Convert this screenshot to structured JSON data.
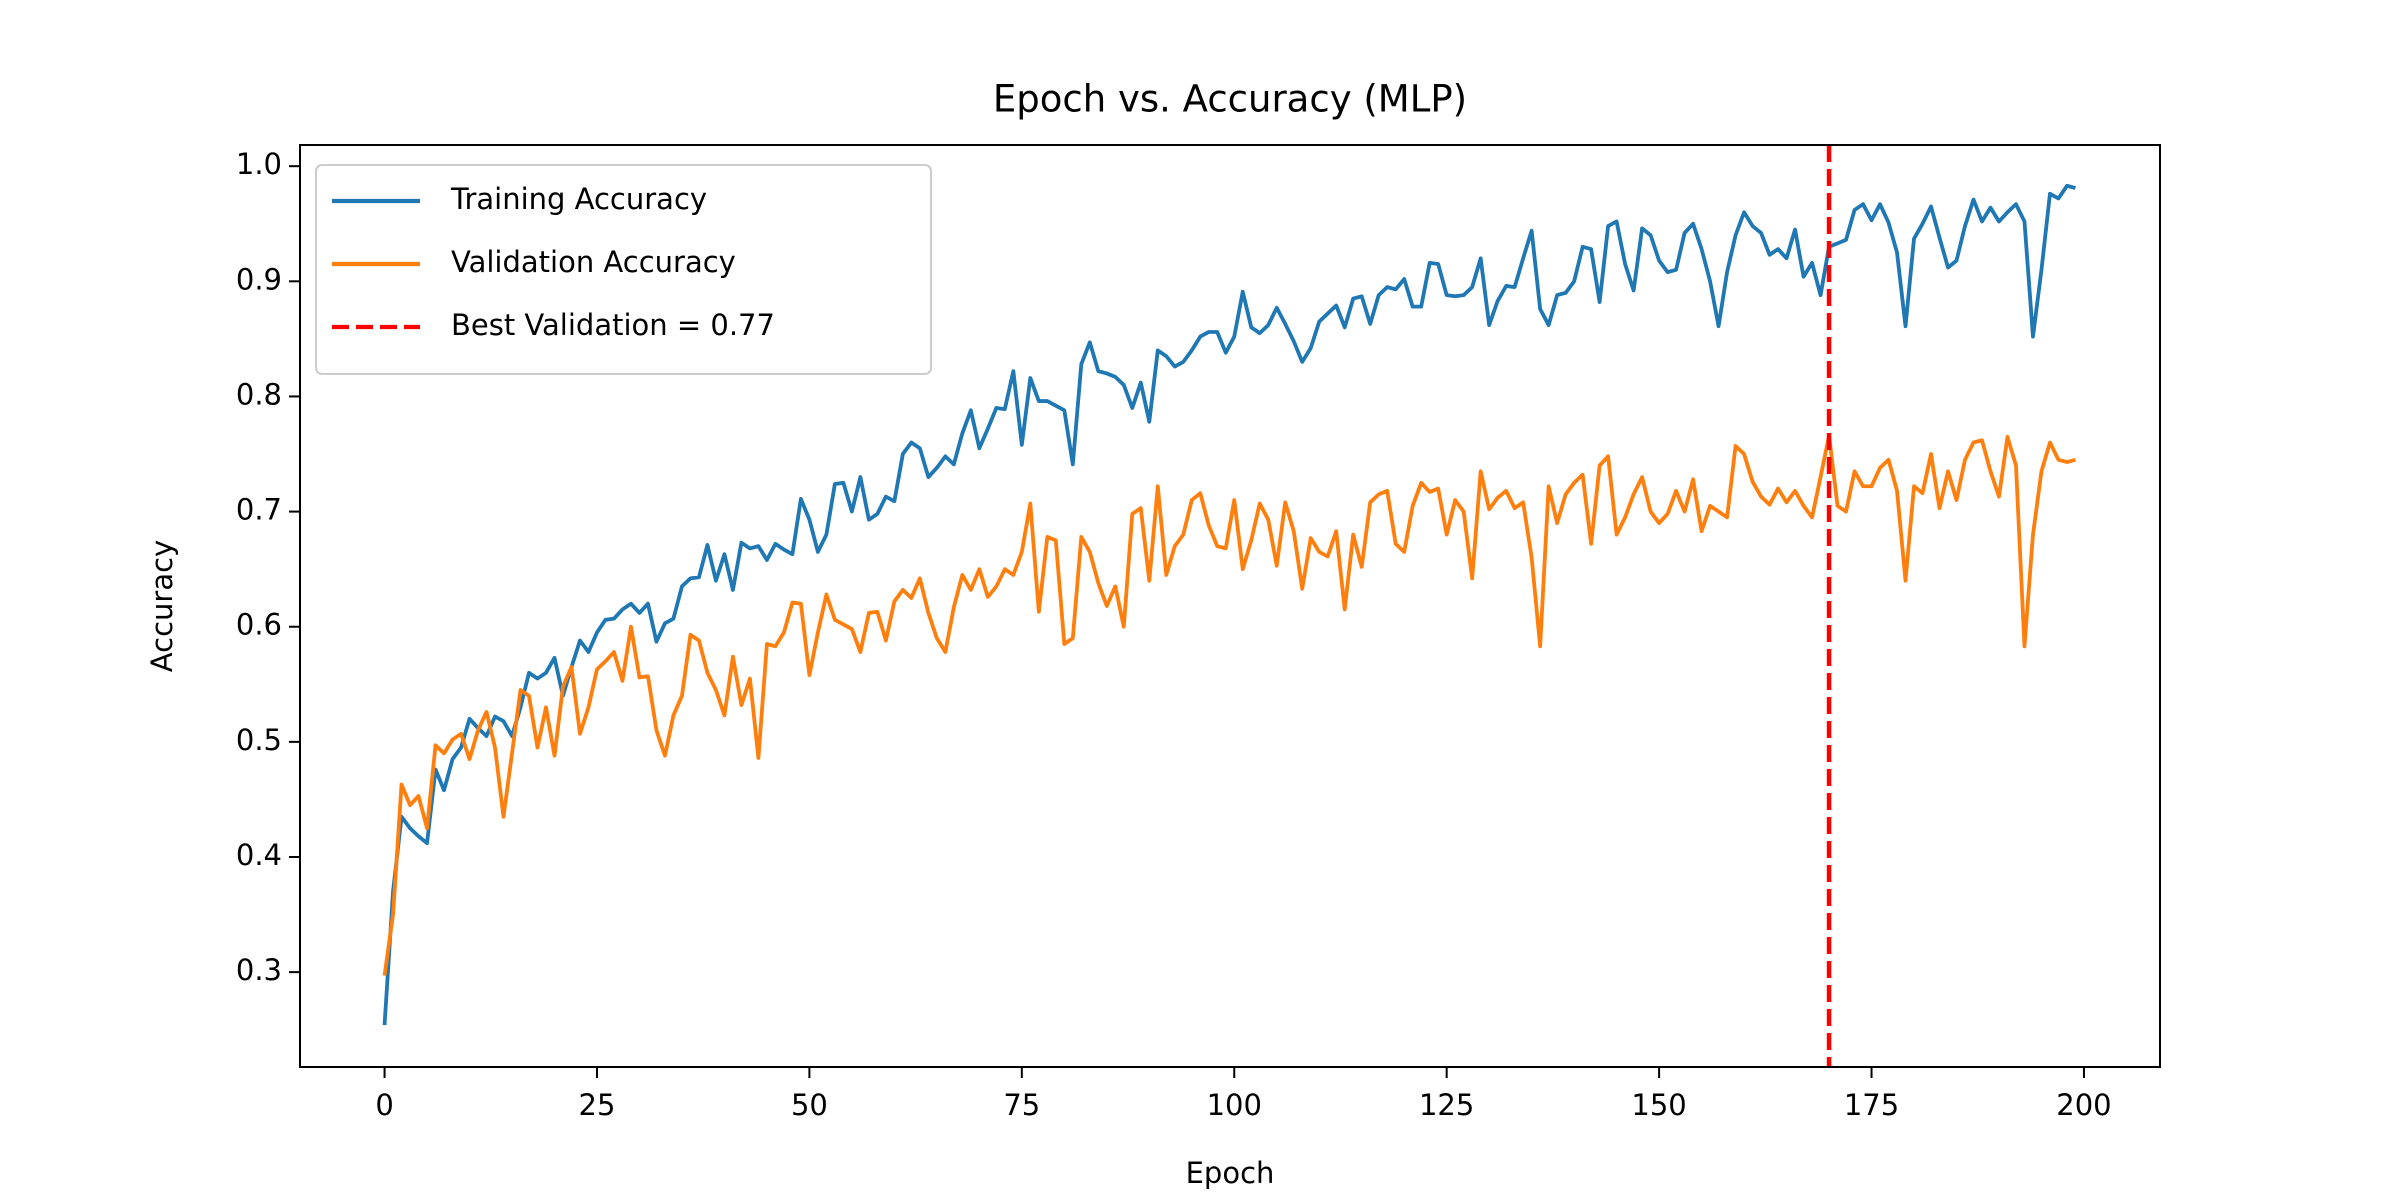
{
  "chart_data": {
    "type": "line",
    "title": "Epoch vs. Accuracy (MLP)",
    "x_label": "Epoch",
    "y_label": "Accuracy",
    "xlim": [
      -9.95,
      208.95
    ],
    "ylim": [
      0.2176,
      1.0184
    ],
    "xticks": [
      0,
      25,
      50,
      75,
      100,
      125,
      150,
      175,
      200
    ],
    "yticks": [
      0.3,
      0.4,
      0.5,
      0.6,
      0.7,
      0.8,
      0.9,
      {
        "value": 1,
        "label": "1.0"
      }
    ],
    "grid": false,
    "legend": "upper left",
    "x": [
      0,
      1,
      2,
      3,
      4,
      5,
      6,
      7,
      8,
      9,
      10,
      11,
      12,
      13,
      14,
      15,
      16,
      17,
      18,
      19,
      20,
      21,
      22,
      23,
      24,
      25,
      26,
      27,
      28,
      29,
      30,
      31,
      32,
      33,
      34,
      35,
      36,
      37,
      38,
      39,
      40,
      41,
      42,
      43,
      44,
      45,
      46,
      47,
      48,
      49,
      50,
      51,
      52,
      53,
      54,
      55,
      56,
      57,
      58,
      59,
      60,
      61,
      62,
      63,
      64,
      65,
      66,
      67,
      68,
      69,
      70,
      71,
      72,
      73,
      74,
      75,
      76,
      77,
      78,
      79,
      80,
      81,
      82,
      83,
      84,
      85,
      86,
      87,
      88,
      89,
      90,
      91,
      92,
      93,
      94,
      95,
      96,
      97,
      98,
      99,
      100,
      101,
      102,
      103,
      104,
      105,
      106,
      107,
      108,
      109,
      110,
      111,
      112,
      113,
      114,
      115,
      116,
      117,
      118,
      119,
      120,
      121,
      122,
      123,
      124,
      125,
      126,
      127,
      128,
      129,
      130,
      131,
      132,
      133,
      134,
      135,
      136,
      137,
      138,
      139,
      140,
      141,
      142,
      143,
      144,
      145,
      146,
      147,
      148,
      149,
      150,
      151,
      152,
      153,
      154,
      155,
      156,
      157,
      158,
      159,
      160,
      161,
      162,
      163,
      164,
      165,
      166,
      167,
      168,
      169,
      170,
      171,
      172,
      173,
      174,
      175,
      176,
      177,
      178,
      179,
      180,
      181,
      182,
      183,
      184,
      185,
      186,
      187,
      188,
      189,
      190,
      191,
      192,
      193,
      194,
      195,
      196,
      197,
      198,
      199
    ],
    "series": [
      {
        "name": "Training Accuracy",
        "color": "#1f77b4",
        "values": [
          0.254,
          0.37,
          0.435,
          0.425,
          0.418,
          0.412,
          0.476,
          0.458,
          0.485,
          0.495,
          0.52,
          0.512,
          0.505,
          0.522,
          0.518,
          0.505,
          0.53,
          0.56,
          0.555,
          0.56,
          0.573,
          0.54,
          0.565,
          0.588,
          0.578,
          0.595,
          0.606,
          0.607,
          0.615,
          0.62,
          0.612,
          0.62,
          0.587,
          0.603,
          0.607,
          0.635,
          0.642,
          0.643,
          0.671,
          0.64,
          0.663,
          0.632,
          0.673,
          0.668,
          0.67,
          0.658,
          0.672,
          0.667,
          0.663,
          0.711,
          0.693,
          0.665,
          0.68,
          0.724,
          0.725,
          0.7,
          0.73,
          0.693,
          0.698,
          0.713,
          0.709,
          0.75,
          0.76,
          0.755,
          0.73,
          0.738,
          0.748,
          0.741,
          0.768,
          0.788,
          0.755,
          0.772,
          0.79,
          0.789,
          0.822,
          0.758,
          0.816,
          0.796,
          0.796,
          0.792,
          0.788,
          0.741,
          0.828,
          0.847,
          0.822,
          0.82,
          0.817,
          0.81,
          0.79,
          0.812,
          0.778,
          0.84,
          0.835,
          0.826,
          0.83,
          0.84,
          0.852,
          0.856,
          0.856,
          0.838,
          0.852,
          0.891,
          0.86,
          0.855,
          0.862,
          0.877,
          0.863,
          0.848,
          0.83,
          0.842,
          0.865,
          0.872,
          0.879,
          0.86,
          0.885,
          0.887,
          0.863,
          0.888,
          0.895,
          0.893,
          0.902,
          0.878,
          0.878,
          0.916,
          0.915,
          0.888,
          0.887,
          0.888,
          0.895,
          0.92,
          0.862,
          0.883,
          0.896,
          0.895,
          0.92,
          0.944,
          0.876,
          0.862,
          0.888,
          0.89,
          0.9,
          0.93,
          0.928,
          0.882,
          0.948,
          0.952,
          0.915,
          0.892,
          0.946,
          0.94,
          0.918,
          0.908,
          0.91,
          0.942,
          0.95,
          0.928,
          0.9,
          0.861,
          0.908,
          0.94,
          0.96,
          0.948,
          0.942,
          0.923,
          0.928,
          0.92,
          0.945,
          0.904,
          0.916,
          0.888,
          0.93,
          0.933,
          0.936,
          0.962,
          0.967,
          0.953,
          0.967,
          0.951,
          0.925,
          0.861,
          0.937,
          0.95,
          0.965,
          0.938,
          0.912,
          0.918,
          0.948,
          0.971,
          0.952,
          0.964,
          0.952,
          0.96,
          0.967,
          0.952,
          0.852,
          0.91,
          0.976,
          0.972,
          0.983,
          0.981
        ]
      },
      {
        "name": "Validation Accuracy",
        "color": "#ff7f0e",
        "values": [
          0.297,
          0.35,
          0.463,
          0.445,
          0.453,
          0.425,
          0.497,
          0.49,
          0.502,
          0.507,
          0.485,
          0.51,
          0.526,
          0.495,
          0.435,
          0.49,
          0.545,
          0.54,
          0.495,
          0.53,
          0.488,
          0.548,
          0.565,
          0.507,
          0.53,
          0.563,
          0.57,
          0.578,
          0.553,
          0.6,
          0.556,
          0.557,
          0.51,
          0.488,
          0.523,
          0.54,
          0.593,
          0.588,
          0.56,
          0.545,
          0.523,
          0.574,
          0.532,
          0.555,
          0.486,
          0.585,
          0.583,
          0.595,
          0.621,
          0.62,
          0.558,
          0.595,
          0.628,
          0.606,
          0.602,
          0.598,
          0.578,
          0.612,
          0.613,
          0.588,
          0.622,
          0.632,
          0.625,
          0.642,
          0.612,
          0.59,
          0.578,
          0.617,
          0.645,
          0.632,
          0.65,
          0.626,
          0.635,
          0.65,
          0.645,
          0.665,
          0.707,
          0.613,
          0.678,
          0.675,
          0.585,
          0.59,
          0.678,
          0.665,
          0.638,
          0.618,
          0.635,
          0.6,
          0.698,
          0.703,
          0.64,
          0.722,
          0.645,
          0.67,
          0.68,
          0.71,
          0.716,
          0.688,
          0.67,
          0.668,
          0.71,
          0.65,
          0.675,
          0.707,
          0.693,
          0.653,
          0.708,
          0.683,
          0.633,
          0.677,
          0.665,
          0.661,
          0.683,
          0.615,
          0.68,
          0.652,
          0.708,
          0.715,
          0.718,
          0.672,
          0.665,
          0.705,
          0.725,
          0.717,
          0.72,
          0.68,
          0.71,
          0.7,
          0.642,
          0.735,
          0.702,
          0.712,
          0.718,
          0.703,
          0.708,
          0.66,
          0.583,
          0.722,
          0.69,
          0.715,
          0.725,
          0.732,
          0.672,
          0.74,
          0.748,
          0.68,
          0.695,
          0.715,
          0.73,
          0.7,
          0.69,
          0.698,
          0.718,
          0.7,
          0.728,
          0.683,
          0.705,
          0.7,
          0.695,
          0.757,
          0.75,
          0.726,
          0.713,
          0.706,
          0.72,
          0.708,
          0.718,
          0.705,
          0.695,
          0.73,
          0.766,
          0.705,
          0.7,
          0.735,
          0.722,
          0.722,
          0.738,
          0.745,
          0.718,
          0.64,
          0.722,
          0.716,
          0.75,
          0.703,
          0.735,
          0.71,
          0.745,
          0.76,
          0.762,
          0.735,
          0.713,
          0.765,
          0.74,
          0.583,
          0.68,
          0.735,
          0.76,
          0.745,
          0.743,
          0.745
        ]
      }
    ],
    "vlines": [
      {
        "x": 170,
        "color": "red",
        "label": "Best Validation = 0.77"
      }
    ]
  }
}
